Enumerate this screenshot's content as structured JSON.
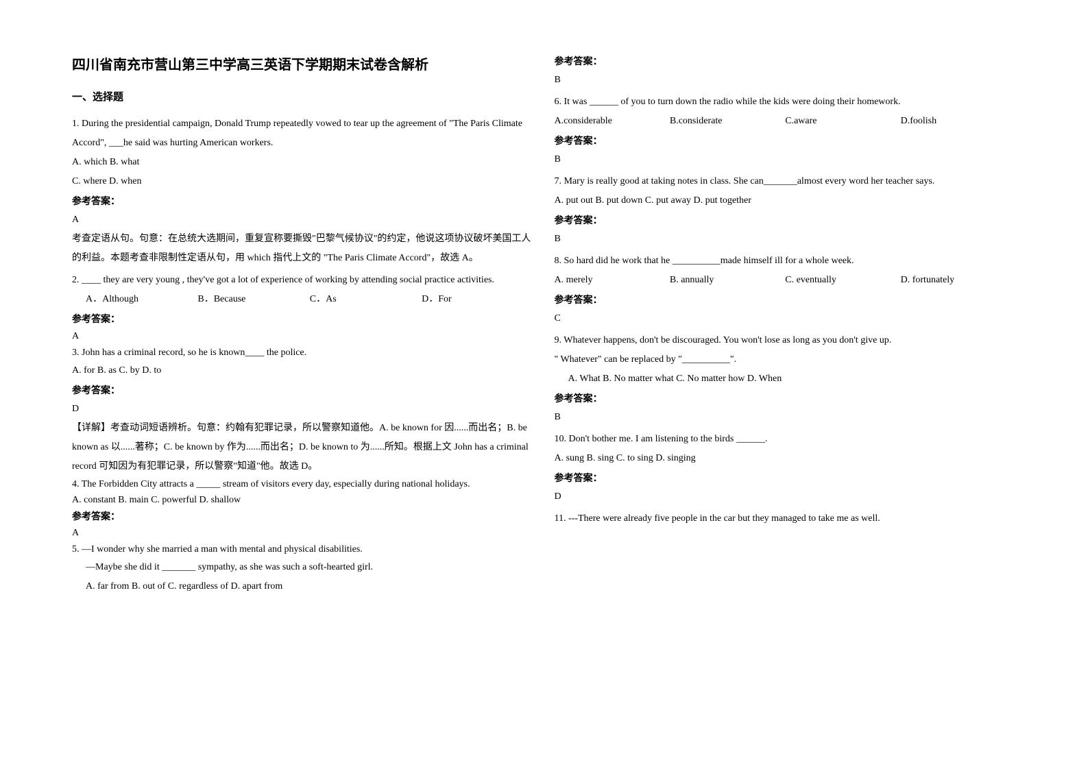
{
  "title": "四川省南充市营山第三中学高三英语下学期期末试卷含解析",
  "section1": "一、选择题",
  "answer_label": "参考答案：",
  "q1": {
    "text": "1. During the presidential campaign, Donald Trump repeatedly vowed to tear up the agreement of \"The Paris Climate Accord\", ___he said was hurting American workers.",
    "opts1": "A. which   B. what",
    "opts2": "C. where   D. when",
    "ans": "A",
    "exp": "考查定语从句。句意：在总统大选期间，重复宣称要撕毁\"巴黎气候协议\"的约定，他说这项协议破坏美国工人的利益。本题考查非限制性定语从句，用 which 指代上文的 \"The Paris Climate Accord\"，故选 A。"
  },
  "q2": {
    "text": "2. ____ they are very young , they've got a lot of experience of working by attending social practice activities.",
    "a": "A．Although",
    "b": "B．Because",
    "c": "C．As",
    "d": "D．For",
    "ans": "A"
  },
  "q3": {
    "text": "3. John has a criminal record, so he is known____ the police.",
    "opts": "A. for   B. as   C. by   D. to",
    "ans": "D",
    "exp": "【详解】考查动词短语辨析。句意：约翰有犯罪记录，所以警察知道他。A. be known for 因......而出名；B. be known as 以......著称；C. be known by 作为......而出名；D. be known to 为......所知。根据上文 John has a criminal record 可知因为有犯罪记录，所以警察\"知道\"他。故选 D。"
  },
  "q4": {
    "text": "4. The Forbidden City attracts a _____ stream of visitors every day, especially during national holidays.",
    "opts": "A. constant      B. main C. powerful     D. shallow",
    "ans": "A"
  },
  "q5": {
    "text1": "5.  —I wonder why she married a man with mental and physical disabilities.",
    "text2": "—Maybe she did it _______ sympathy, as she was such a soft-hearted girl.",
    "opts": "A. far from      B. out of      C. regardless of      D. apart from",
    "ans": "B"
  },
  "q6": {
    "text": "6. It was ______ of you to turn down the radio while the kids were doing their homework.",
    "a": "A.considerable",
    "b": "B.considerate",
    "c": "C.aware",
    "d": "D.foolish",
    "ans": "B"
  },
  "q7": {
    "text": "7. Mary is really good at taking notes in class. She can_______almost every word her teacher says.",
    "opts": "A. put out       B. put down      C. put away   D. put together",
    "ans": "B"
  },
  "q8": {
    "text": "8. So hard did he work that he __________made himself ill for a whole week.",
    "a": "A. merely",
    "b": "B. annually",
    "c": "C. eventually",
    "d": "D. fortunately",
    "ans": "C"
  },
  "q9": {
    "text1": "9. Whatever happens, don't be discouraged. You won't lose as long as you don't give up.",
    "text2": "\" Whatever\" can be replaced by \"__________\".",
    "opts": "A. What      B. No matter what    C. No matter how   D. When",
    "ans": "B"
  },
  "q10": {
    "text": "10. Don't bother me. I am listening to the birds ______.",
    "opts": "A. sung        B. sing           C. to sing           D. singing",
    "ans": "D"
  },
  "q11": {
    "text": "11. ---There were already five people in the car but they managed to take me as well."
  }
}
